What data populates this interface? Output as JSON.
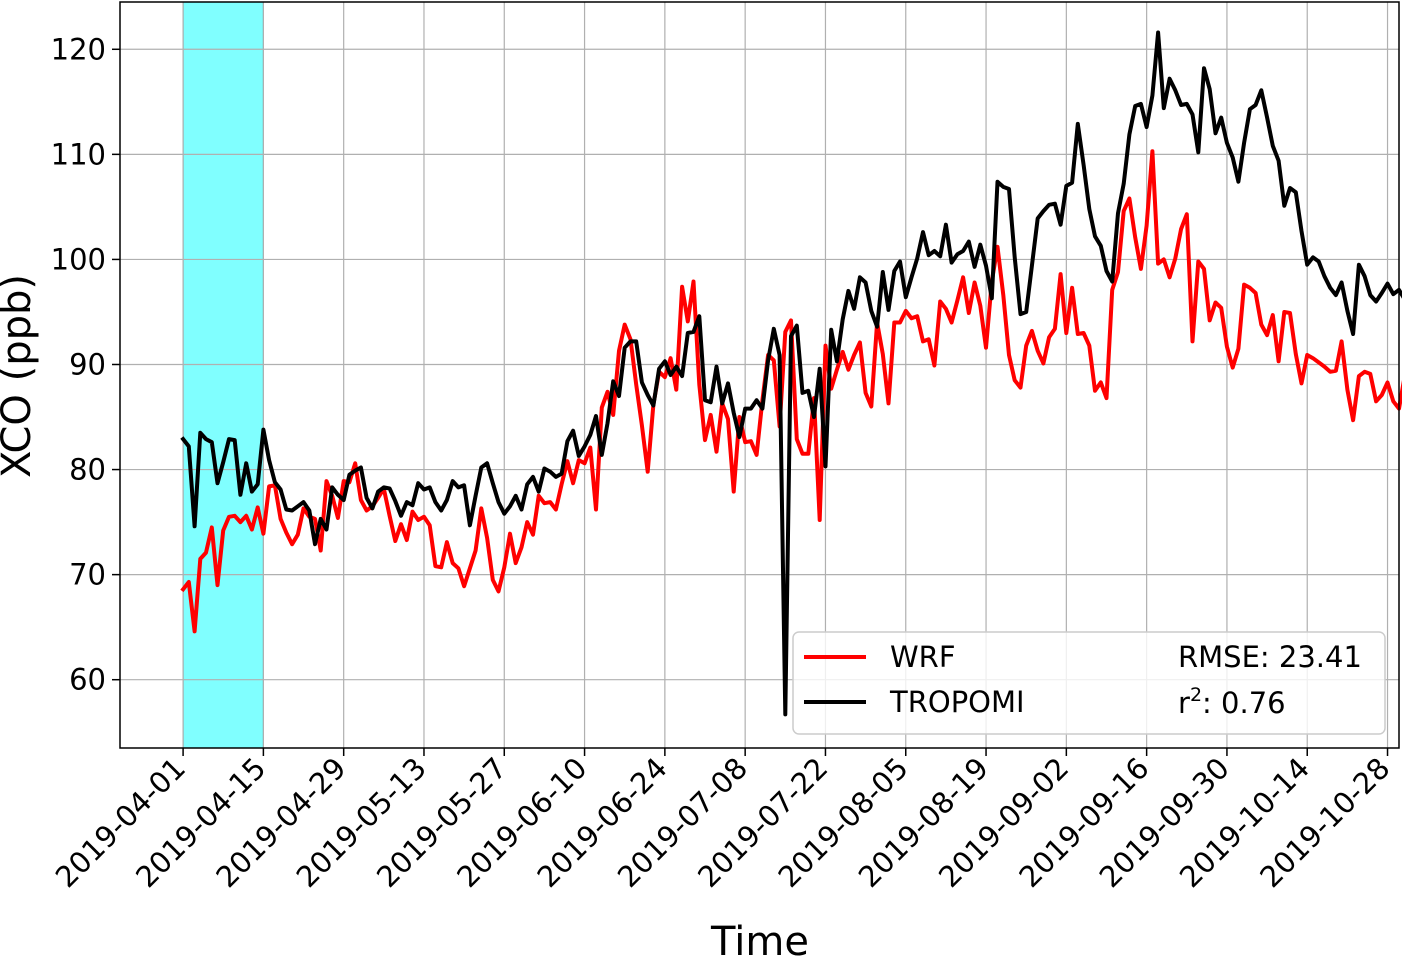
{
  "chart_data": {
    "type": "line",
    "title": "",
    "xlabel": "Time",
    "ylabel": "XCO (ppb)",
    "x_range": [
      "2019-03-21",
      "2019-10-30"
    ],
    "ylim": [
      53.5,
      124.5
    ],
    "grid": true,
    "x_ticks": [
      "2019-04-01",
      "2019-04-15",
      "2019-04-29",
      "2019-05-13",
      "2019-05-27",
      "2019-06-10",
      "2019-06-24",
      "2019-07-08",
      "2019-07-22",
      "2019-08-05",
      "2019-08-19",
      "2019-09-02",
      "2019-09-16",
      "2019-09-30",
      "2019-10-14",
      "2019-10-28"
    ],
    "y_ticks": [
      60,
      70,
      80,
      90,
      100,
      110,
      120
    ],
    "highlight_span": {
      "x_start": "2019-04-01",
      "x_end": "2019-04-15",
      "color": "#80ffff"
    },
    "start_date": "2019-04-01",
    "series": [
      {
        "name": "WRF",
        "color": "#ff0000",
        "values": [
          68.6,
          69.3,
          64.6,
          71.5,
          72.1,
          74.5,
          69.0,
          74.2,
          75.5,
          75.6,
          75.0,
          75.6,
          74.3,
          76.4,
          73.9,
          78.4,
          78.5,
          75.3,
          74.0,
          72.9,
          73.8,
          76.3,
          75.5,
          75.3,
          72.3,
          78.9,
          77.5,
          75.4,
          78.9,
          78.8,
          80.6,
          77.1,
          76.1,
          76.5,
          77.3,
          78.2,
          75.6,
          73.2,
          74.8,
          73.3,
          76.0,
          75.2,
          75.5,
          74.7,
          70.8,
          70.7,
          73.1,
          71.1,
          70.6,
          68.9,
          70.6,
          72.3,
          76.3,
          73.5,
          69.5,
          68.4,
          70.7,
          73.9,
          71.1,
          72.6,
          75.0,
          73.8,
          77.5,
          76.8,
          76.9,
          76.2,
          78.6,
          80.8,
          78.7,
          80.9,
          80.6,
          82.1,
          76.2,
          85.9,
          87.4,
          85.2,
          91.3,
          93.8,
          92.4,
          88.1,
          84.2,
          79.8,
          86.2,
          89.3,
          88.8,
          90.6,
          87.6,
          97.4,
          94.1,
          97.9,
          88.1,
          82.8,
          85.2,
          81.7,
          86.3,
          84.8,
          77.9,
          85.0,
          82.6,
          82.7,
          81.4,
          86.6,
          90.9,
          90.4,
          84.1,
          93.1,
          94.2,
          82.9,
          81.5,
          81.5,
          86.8,
          75.2,
          91.8,
          87.7,
          89.5,
          91.2,
          89.5,
          90.9,
          92.1,
          87.3,
          86.0,
          94.0,
          91.0,
          86.3,
          94.0,
          94.0,
          95.1,
          94.4,
          94.6,
          92.2,
          92.4,
          89.9,
          96.0,
          95.3,
          94.0,
          96.1,
          98.3,
          94.9,
          97.8,
          95.6,
          91.6,
          97.9,
          101.2,
          96.6,
          90.9,
          88.5,
          87.8,
          91.8,
          93.2,
          91.3,
          90.1,
          92.6,
          93.4,
          98.6,
          93.0,
          97.3,
          92.9,
          93.0,
          91.8,
          87.5,
          88.3,
          86.8,
          97.1,
          98.8,
          104.6,
          105.8,
          102.1,
          99.1,
          103.2,
          110.3,
          99.6,
          100.0,
          98.3,
          100.1,
          102.9,
          104.3,
          92.2,
          99.8,
          99.1,
          94.2,
          95.9,
          95.4,
          91.7,
          89.7,
          91.5,
          97.6,
          97.3,
          96.8,
          93.8,
          92.8,
          94.7,
          90.3,
          95.0,
          94.9,
          91.0,
          88.2,
          90.9,
          90.6,
          90.2,
          89.8,
          89.3,
          89.4,
          92.2,
          87.6,
          84.7,
          88.9,
          89.3,
          89.1,
          86.5,
          87.1,
          88.3,
          86.5,
          85.8,
          88.9
        ]
      },
      {
        "name": "TROPOMI",
        "color": "#000000",
        "values": [
          82.9,
          82.2,
          74.6,
          83.5,
          82.9,
          82.6,
          78.7,
          80.7,
          82.9,
          82.8,
          77.6,
          80.6,
          77.9,
          78.6,
          83.8,
          80.9,
          78.8,
          78.1,
          76.2,
          76.1,
          76.5,
          76.9,
          76.1,
          72.9,
          75.3,
          74.3,
          78.3,
          77.6,
          77.1,
          79.5,
          79.9,
          80.2,
          77.3,
          76.3,
          77.9,
          78.3,
          78.2,
          77.0,
          75.6,
          76.9,
          76.6,
          78.7,
          78.1,
          78.3,
          76.9,
          76.1,
          77.1,
          78.9,
          78.3,
          78.5,
          74.7,
          77.5,
          80.2,
          80.6,
          78.7,
          76.9,
          75.8,
          76.5,
          77.5,
          76.2,
          78.6,
          79.3,
          77.9,
          80.1,
          79.8,
          79.3,
          79.6,
          82.7,
          83.7,
          81.3,
          82.2,
          83.3,
          85.1,
          81.4,
          84.4,
          88.4,
          87.0,
          91.6,
          92.2,
          92.2,
          88.3,
          87.1,
          86.1,
          89.6,
          90.3,
          89.0,
          89.8,
          88.9,
          93.0,
          93.1,
          94.6,
          86.6,
          86.4,
          89.8,
          86.3,
          88.2,
          85.4,
          83.1,
          85.8,
          85.8,
          86.6,
          85.8,
          90.4,
          93.4,
          90.9,
          56.7,
          92.7,
          93.7,
          87.3,
          87.5,
          85.0,
          89.6,
          80.3,
          93.3,
          90.3,
          94.3,
          97.0,
          95.3,
          98.3,
          97.8,
          95.1,
          93.6,
          98.8,
          95.2,
          98.9,
          99.8,
          96.4,
          98.3,
          100.1,
          102.6,
          100.4,
          100.8,
          100.3,
          103.3,
          99.7,
          100.5,
          100.8,
          101.7,
          99.3,
          101.4,
          99.4,
          96.3,
          107.4,
          106.9,
          106.7,
          100.2,
          94.8,
          95.0,
          99.4,
          103.9,
          104.6,
          105.2,
          105.3,
          103.3,
          107.0,
          107.3,
          112.9,
          109.0,
          104.8,
          102.2,
          101.3,
          98.9,
          97.9,
          104.4,
          107.2,
          111.9,
          114.6,
          114.8,
          112.6,
          115.6,
          121.6,
          114.4,
          117.2,
          116.1,
          114.7,
          114.8,
          113.8,
          110.2,
          118.2,
          116.2,
          112.0,
          113.5,
          111.1,
          109.7,
          107.4,
          111.1,
          114.3,
          114.7,
          116.1,
          113.5,
          110.8,
          109.4,
          105.1,
          106.8,
          106.4,
          102.7,
          99.5,
          100.2,
          99.8,
          98.4,
          97.3,
          96.6,
          97.8,
          95.1,
          92.9,
          99.5,
          98.4,
          96.6,
          96.0,
          96.8,
          97.7,
          96.7,
          97.1,
          96.2
        ]
      }
    ],
    "legend": {
      "position": "lower-right",
      "stats": {
        "rmse": "RMSE: 23.41",
        "r2_prefix": "r",
        "r2_sup": "2",
        "r2_value": ": 0.76"
      }
    }
  }
}
